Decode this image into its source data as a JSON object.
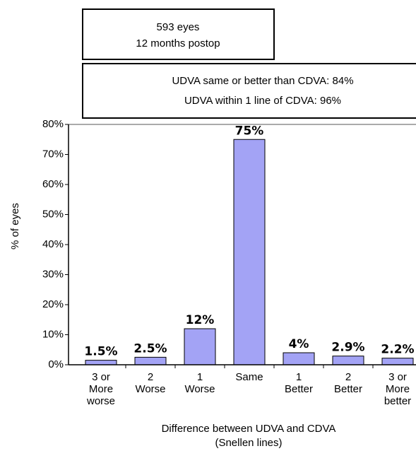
{
  "chart_data": {
    "type": "bar",
    "annotations": [
      [
        "593 eyes",
        "12 months postop"
      ],
      [
        "UDVA same or better than CDVA: 84%",
        "UDVA within 1 line of CDVA: 96%"
      ]
    ],
    "categories": [
      "3 or\nMore\nworse",
      "2\nWorse",
      "1\nWorse",
      "Same",
      "1\nBetter",
      "2\nBetter",
      "3 or\nMore\nbetter"
    ],
    "values": [
      1.5,
      2.5,
      12,
      75,
      4,
      2.9,
      2.2
    ],
    "value_labels": [
      "1.5%",
      "2.5%",
      "12%",
      "75%",
      "4%",
      "2.9%",
      "2.2%"
    ],
    "color": "#a3a3f5",
    "ylabel": "% of eyes",
    "xlabel": [
      "Difference between UDVA and CDVA",
      "(Snellen lines)"
    ],
    "ylim": [
      0,
      80
    ],
    "yticks": [
      {
        "value": 0,
        "label": "0%"
      },
      {
        "value": 10,
        "label": "10%"
      },
      {
        "value": 20,
        "label": "20%"
      },
      {
        "value": 30,
        "label": "30%"
      },
      {
        "value": 40,
        "label": "40%"
      },
      {
        "value": 50,
        "label": "50%"
      },
      {
        "value": 60,
        "label": "60%"
      },
      {
        "value": 70,
        "label": "70%"
      },
      {
        "value": 80,
        "label": "80%"
      }
    ]
  }
}
